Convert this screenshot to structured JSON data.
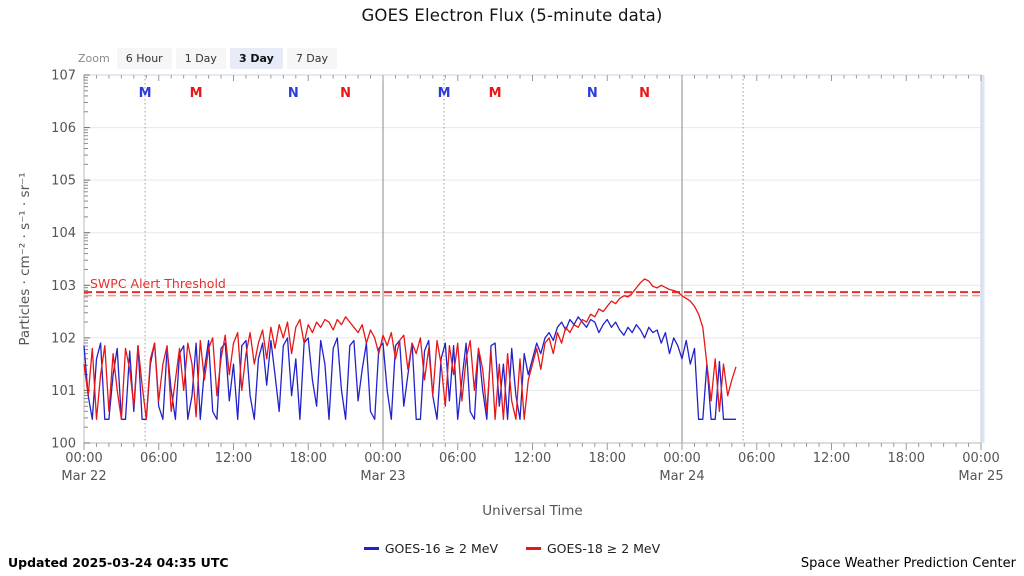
{
  "title": "GOES Electron Flux (5-minute data)",
  "zoom": {
    "label": "Zoom",
    "options": [
      "6 Hour",
      "1 Day",
      "3 Day",
      "7 Day"
    ],
    "selected": "3 Day"
  },
  "axes": {
    "y_title": "Particles · cm⁻² · s⁻¹ · sr⁻¹",
    "x_title": "Universal Time",
    "y_tick_labels": [
      "100",
      "101",
      "102",
      "103",
      "104",
      "105",
      "106",
      "107"
    ],
    "x_ticks": [
      {
        "hour": 0,
        "time": "00:00",
        "date": "Mar 22"
      },
      {
        "hour": 6,
        "time": "06:00"
      },
      {
        "hour": 12,
        "time": "12:00"
      },
      {
        "hour": 18,
        "time": "18:00"
      },
      {
        "hour": 24,
        "time": "00:00",
        "date": "Mar 23"
      },
      {
        "hour": 30,
        "time": "06:00"
      },
      {
        "hour": 36,
        "time": "12:00"
      },
      {
        "hour": 42,
        "time": "18:00"
      },
      {
        "hour": 48,
        "time": "00:00",
        "date": "Mar 24"
      },
      {
        "hour": 54,
        "time": "06:00"
      },
      {
        "hour": 60,
        "time": "12:00"
      },
      {
        "hour": 66,
        "time": "18:00"
      },
      {
        "hour": 72,
        "time": "00:00",
        "date": "Mar 25"
      }
    ]
  },
  "footer": {
    "updated": "Updated 2025-03-24 04:35 UTC",
    "credit": "Space Weather Prediction Center"
  },
  "chart_data": {
    "type": "line",
    "title": "GOES Electron Flux (5-minute data)",
    "xlabel": "Universal Time",
    "ylabel": "Particles · cm⁻² · s⁻¹ · sr⁻¹",
    "x_axis": {
      "start": "Mar 22 00:00 UTC",
      "end": "Mar 25 00:00 UTC",
      "hours": 72,
      "tick_interval_hours": 6
    },
    "y_axis": {
      "scale": "log10",
      "min_log10": 0,
      "max_log10": 7,
      "grid": "decades"
    },
    "threshold": {
      "label": "SWPC Alert Threshold",
      "log10_value": 2.87,
      "color": "#e62e2e"
    },
    "day_boundaries_hours": [
      24,
      48
    ],
    "midnight_dotted_lines_hours": [
      4.9,
      28.9,
      52.9
    ],
    "satellite_local_time_markers": [
      {
        "label": "M",
        "hour": 4.9,
        "color": "#2a3cdd"
      },
      {
        "label": "M",
        "hour": 9.0,
        "color": "#e81717"
      },
      {
        "label": "N",
        "hour": 16.8,
        "color": "#2a3cdd"
      },
      {
        "label": "N",
        "hour": 21.0,
        "color": "#e81717"
      },
      {
        "label": "M",
        "hour": 28.9,
        "color": "#2a3cdd"
      },
      {
        "label": "M",
        "hour": 33.0,
        "color": "#e81717"
      },
      {
        "label": "N",
        "hour": 40.8,
        "color": "#2a3cdd"
      },
      {
        "label": "N",
        "hour": 45.0,
        "color": "#e81717"
      }
    ],
    "sample_step_hours": 0.333333,
    "series": [
      {
        "name": "GOES-16 ≥ 2 MeV",
        "color": "#2222cc",
        "log10_values": [
          1.85,
          0.9,
          0.45,
          1.6,
          1.9,
          0.45,
          0.45,
          1.3,
          1.8,
          0.45,
          0.45,
          1.75,
          0.6,
          1.85,
          0.45,
          0.45,
          1.5,
          1.9,
          0.7,
          0.45,
          1.8,
          1.0,
          0.45,
          1.7,
          1.85,
          0.45,
          0.9,
          1.9,
          0.45,
          1.4,
          1.95,
          0.6,
          0.45,
          1.8,
          1.9,
          0.8,
          1.5,
          0.45,
          1.85,
          1.95,
          0.9,
          0.45,
          1.6,
          1.9,
          1.1,
          1.95,
          1.3,
          0.6,
          1.85,
          2.0,
          0.9,
          1.6,
          0.45,
          1.9,
          2.0,
          1.2,
          0.7,
          1.95,
          1.5,
          0.45,
          1.8,
          2.0,
          1.0,
          0.45,
          1.85,
          1.95,
          0.8,
          1.4,
          1.9,
          0.6,
          0.45,
          1.8,
          1.9,
          1.0,
          0.45,
          1.85,
          1.95,
          0.7,
          1.3,
          1.9,
          0.45,
          0.45,
          1.75,
          1.95,
          0.9,
          0.45,
          1.6,
          1.9,
          0.8,
          1.85,
          0.45,
          1.2,
          1.9,
          0.6,
          0.45,
          1.8,
          1.0,
          0.45,
          1.85,
          1.9,
          0.7,
          1.5,
          0.45,
          1.8,
          0.9,
          0.45,
          1.7,
          1.3,
          1.6,
          1.9,
          1.7,
          2.0,
          2.1,
          1.95,
          2.2,
          2.3,
          2.15,
          2.35,
          2.25,
          2.4,
          2.3,
          2.2,
          2.35,
          2.3,
          2.1,
          2.25,
          2.35,
          2.2,
          2.3,
          2.15,
          2.05,
          2.2,
          2.1,
          2.25,
          2.15,
          2.0,
          2.2,
          2.1,
          2.15,
          1.9,
          2.1,
          1.7,
          2.0,
          1.85,
          1.6,
          1.95,
          1.5,
          1.8,
          0.45,
          0.45,
          1.5,
          0.45,
          0.45,
          1.55,
          0.45,
          0.45,
          0.45,
          0.45
        ]
      },
      {
        "name": "GOES-18 ≥ 2 MeV",
        "color": "#e81717",
        "log10_values": [
          1.5,
          0.9,
          1.8,
          0.45,
          1.3,
          1.85,
          0.6,
          1.7,
          1.0,
          0.45,
          1.8,
          1.4,
          0.7,
          1.85,
          1.1,
          0.45,
          1.6,
          1.9,
          0.8,
          1.5,
          1.85,
          0.6,
          1.2,
          1.8,
          1.0,
          1.9,
          1.5,
          0.5,
          1.95,
          1.2,
          1.8,
          2.0,
          0.9,
          1.6,
          2.05,
          1.3,
          1.9,
          2.1,
          1.0,
          1.7,
          2.1,
          1.5,
          1.9,
          2.15,
          1.6,
          2.2,
          1.8,
          2.25,
          2.0,
          2.3,
          1.7,
          2.2,
          2.35,
          1.9,
          2.25,
          2.1,
          2.3,
          2.2,
          2.35,
          2.3,
          2.15,
          2.35,
          2.25,
          2.4,
          2.3,
          2.2,
          2.1,
          2.25,
          1.9,
          2.15,
          2.0,
          1.7,
          2.05,
          1.85,
          2.1,
          1.6,
          1.95,
          2.05,
          1.4,
          1.9,
          1.7,
          2.0,
          1.2,
          1.8,
          0.9,
          1.95,
          1.5,
          0.7,
          1.85,
          1.3,
          1.9,
          0.8,
          1.6,
          1.95,
          1.0,
          1.8,
          1.4,
          0.6,
          1.75,
          0.45,
          1.5,
          0.45,
          1.7,
          0.8,
          0.45,
          1.6,
          0.45,
          1.2,
          1.5,
          1.8,
          1.4,
          1.9,
          2.0,
          1.7,
          2.1,
          1.9,
          2.2,
          2.1,
          2.25,
          2.2,
          2.35,
          2.3,
          2.45,
          2.4,
          2.55,
          2.5,
          2.6,
          2.7,
          2.65,
          2.75,
          2.8,
          2.78,
          2.85,
          2.95,
          3.05,
          3.12,
          3.08,
          2.98,
          2.95,
          3.0,
          2.96,
          2.92,
          2.9,
          2.87,
          2.8,
          2.75,
          2.7,
          2.6,
          2.45,
          2.2,
          1.5,
          0.8,
          1.6,
          0.6,
          1.5,
          0.9,
          1.2,
          1.45
        ]
      }
    ],
    "legend_position": "bottom-center"
  }
}
